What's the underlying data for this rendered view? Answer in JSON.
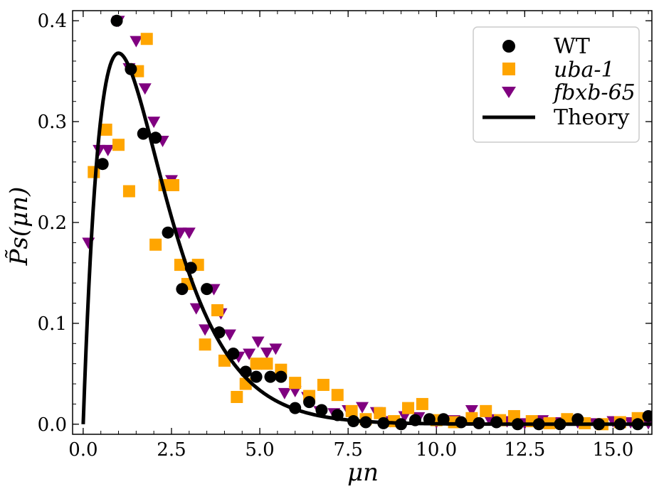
{
  "chart_data": {
    "type": "scatter",
    "title": "",
    "xlabel": "μn",
    "ylabel": "P̃s(μn)",
    "xlim": [
      -0.3,
      16.1
    ],
    "ylim": [
      -0.01,
      0.41
    ],
    "xticks": [
      0.0,
      2.5,
      5.0,
      7.5,
      10.0,
      12.5,
      15.0
    ],
    "xtick_labels": [
      "0.0",
      "2.5",
      "5.0",
      "7.5",
      "10.0",
      "12.5",
      "15.0"
    ],
    "yticks": [
      0.0,
      0.1,
      0.2,
      0.3,
      0.4
    ],
    "ytick_labels": [
      "0.0",
      "0.1",
      "0.2",
      "0.3",
      "0.4"
    ],
    "legend_position": "top-right",
    "colors": {
      "wt": "#000000",
      "uba1": "#ffa500",
      "fbxb65": "#800080",
      "theory": "#000000"
    },
    "series": [
      {
        "name": "WT",
        "marker": "circle",
        "color": "#000000",
        "x": [
          0.55,
          0.95,
          1.35,
          1.7,
          2.05,
          2.4,
          2.8,
          3.05,
          3.5,
          3.85,
          4.25,
          4.6,
          4.9,
          5.3,
          5.6,
          6.0,
          6.4,
          6.75,
          7.2,
          7.65,
          8.0,
          8.5,
          9.0,
          9.4,
          9.8,
          10.2,
          10.7,
          11.2,
          11.7,
          12.3,
          12.9,
          13.5,
          14.0,
          14.6,
          15.2,
          15.7,
          16.0
        ],
        "y": [
          0.258,
          0.4,
          0.352,
          0.288,
          0.284,
          0.19,
          0.134,
          0.155,
          0.134,
          0.091,
          0.07,
          0.052,
          0.047,
          0.047,
          0.047,
          0.016,
          0.022,
          0.014,
          0.009,
          0.003,
          0.002,
          0.001,
          0.0,
          0.004,
          0.005,
          0.005,
          0.002,
          0.001,
          0.002,
          0.0,
          0.0,
          0.0,
          0.005,
          0.0,
          0.0,
          0.0,
          0.008
        ]
      },
      {
        "name": "uba-1",
        "marker": "square",
        "color": "#ffa500",
        "x": [
          0.3,
          0.65,
          1.0,
          1.3,
          1.55,
          1.8,
          2.05,
          2.3,
          2.55,
          2.75,
          2.95,
          3.25,
          3.45,
          3.8,
          4.0,
          4.35,
          4.6,
          4.9,
          5.2,
          5.6,
          6.0,
          6.4,
          6.8,
          7.2,
          7.6,
          8.0,
          8.4,
          8.8,
          9.2,
          9.6,
          10.0,
          10.5,
          11.0,
          11.4,
          11.8,
          12.2,
          12.7,
          13.2,
          13.7,
          14.2,
          14.7,
          15.2,
          15.7
        ],
        "y": [
          0.25,
          0.292,
          0.277,
          0.231,
          0.35,
          0.382,
          0.178,
          0.237,
          0.237,
          0.158,
          0.139,
          0.158,
          0.079,
          0.113,
          0.063,
          0.027,
          0.04,
          0.06,
          0.06,
          0.054,
          0.041,
          0.028,
          0.039,
          0.029,
          0.013,
          0.005,
          0.011,
          0.003,
          0.016,
          0.02,
          0.004,
          0.002,
          0.006,
          0.013,
          0.004,
          0.008,
          0.003,
          0.001,
          0.005,
          0.001,
          0.0,
          0.002,
          0.006
        ]
      },
      {
        "name": "fbxb-65",
        "marker": "triangle-down",
        "color": "#800080",
        "x": [
          0.15,
          0.45,
          0.7,
          1.0,
          1.3,
          1.5,
          1.75,
          2.0,
          2.25,
          2.5,
          2.75,
          3.0,
          3.2,
          3.45,
          3.7,
          3.9,
          4.15,
          4.4,
          4.7,
          4.95,
          5.2,
          5.45,
          5.7,
          6.0,
          6.35,
          6.7,
          7.1,
          7.5,
          7.9,
          8.3,
          8.7,
          9.1,
          9.5,
          10.0,
          10.5,
          11.0,
          11.5,
          12.0,
          12.5,
          13.0,
          13.5,
          14.0,
          14.5,
          15.0,
          15.5,
          16.0
        ],
        "y": [
          0.18,
          0.272,
          0.272,
          0.4,
          0.353,
          0.38,
          0.333,
          0.3,
          0.281,
          0.242,
          0.19,
          0.19,
          0.115,
          0.094,
          0.134,
          0.11,
          0.089,
          0.067,
          0.07,
          0.082,
          0.071,
          0.075,
          0.031,
          0.033,
          0.027,
          0.013,
          0.011,
          0.014,
          0.017,
          0.012,
          0.003,
          0.008,
          0.007,
          0.002,
          0.004,
          0.014,
          0.005,
          0.003,
          0.001,
          0.004,
          0.002,
          0.002,
          0.001,
          0.003,
          0.002,
          0.001
        ]
      },
      {
        "name": "Theory",
        "marker": "line",
        "color": "#000000",
        "formula": "x * exp(-x)",
        "x_range": [
          0.0,
          16.1
        ]
      }
    ]
  }
}
